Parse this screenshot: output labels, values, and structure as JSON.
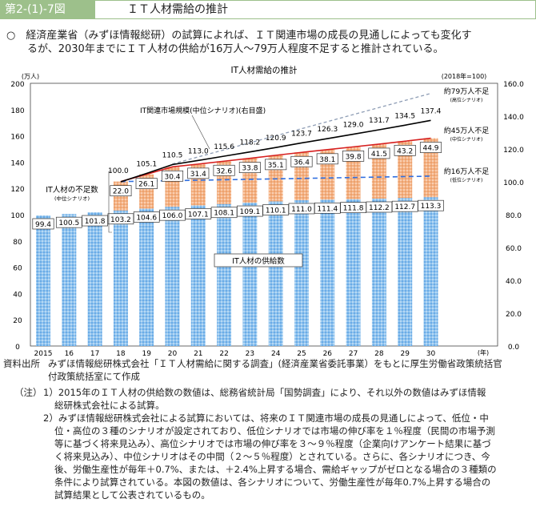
{
  "header": {
    "figure_no": "第2-(1)-7図",
    "title": "ＩＴ人材需給の推計"
  },
  "lead": {
    "line1": "○　経済産業省（みずほ情報総研）の試算によれば、ＩＴ関連市場の成長の見通しによっても変化す",
    "line2": "るが、2030年までにＩＴ人材の供給が16万人～79万人程度不足すると推計されている。"
  },
  "chart_data": {
    "type": "bar",
    "title": "IT人材需給の推計",
    "ylabel": "(万人)",
    "y2label": "(2018年=100)",
    "xlabel": "(年)",
    "ylim": [
      0,
      200
    ],
    "y2lim": [
      0,
      160
    ],
    "yticks": [
      "0",
      "20",
      "40",
      "60",
      "80",
      "100",
      "120",
      "140",
      "160",
      "180",
      "200"
    ],
    "y2ticks": [
      "0.0",
      "20.0",
      "40.0",
      "60.0",
      "80.0",
      "100.0",
      "120.0",
      "140.0",
      "160.0"
    ],
    "categories": [
      "2015",
      "16",
      "17",
      "18",
      "19",
      "20",
      "21",
      "22",
      "23",
      "24",
      "25",
      "26",
      "27",
      "28",
      "29",
      "30"
    ],
    "series": [
      {
        "name": "IT人材の供給数",
        "type": "stacked-bar",
        "color": "#8fc3ee",
        "values": [
          99.4,
          100.5,
          101.8,
          103.2,
          104.6,
          106.0,
          107.1,
          108.1,
          109.1,
          110.1,
          111.0,
          111.4,
          111.8,
          112.2,
          112.7,
          113.3
        ]
      },
      {
        "name": "IT人材の不足数",
        "sub": "(中位シナリオ)",
        "type": "stacked-bar",
        "color": "#f4b183",
        "values": [
          null,
          null,
          null,
          22.0,
          26.1,
          30.4,
          31.4,
          32.6,
          33.8,
          35.1,
          36.4,
          38.1,
          39.8,
          41.5,
          43.2,
          44.9
        ]
      },
      {
        "name": "IT関連市場規模(中位シナリオ)(右目盛)",
        "type": "line",
        "axis": "right",
        "color": "#000000",
        "values": [
          null,
          null,
          null,
          100.0,
          105.1,
          110.5,
          113.0,
          115.6,
          118.2,
          120.9,
          123.7,
          126.3,
          129.0,
          131.7,
          134.5,
          137.4
        ]
      }
    ],
    "scenarios": [
      {
        "label": "約79万人不足",
        "sub": "(高位シナリオ)",
        "color": "#8e9db5",
        "style": "dashed",
        "demand": {
          "20": 138.6,
          "30": 192.3
        }
      },
      {
        "label": "約45万人不足",
        "sub": "(中位シナリオ)",
        "color": "#d62020",
        "style": "solid"
      },
      {
        "label": "約16万人不足",
        "sub": "(低位シナリオ)",
        "color": "#2f6fe0",
        "style": "dashed",
        "demand": {
          "18": 125.2,
          "30": 129.3
        }
      }
    ]
  },
  "notes": {
    "source_key": "資料出所",
    "source1": "みずほ情報総研株式会社「ＩＴ人材需給に関する調査」(経済産業省委託事業）をもとに厚生労働省政策統括官",
    "source2": "付政策統括室にて作成",
    "note_key": "（注）",
    "n1a": "1）2015年のＩＴ人材の供給数の数値は、総務省統計局「国勢調査」により、それ以外の数値はみずほ情報",
    "n1b": "総研株式会社による試算。",
    "n2a": "2）みずほ情報総研株式会社による試算においては、将来のＩＴ関連市場の成長の見通しによって、低位・中",
    "n2b": "位・高位の３種のシナリオが設定されており、低位シナリオでは市場の伸び率を１％程度（民間の市場予測",
    "n2c": "等に基づく将来見込み）、高位シナリオでは市場の伸び率を３～９％程度（企業向けアンケート結果に基づ",
    "n2d": "く将来見込み）、中位シナリオはその中間（２～５％程度）とされている。さらに、各シナリオにつき、今",
    "n2e": "後、労働生産性が毎年＋0.7%、または、＋2.4%上昇する場合、需給ギャップがゼロとなる場合の３種類の",
    "n2f": "条件により試算されている。本図の数値は、各シナリオについて、労働生産性が毎年0.7%上昇する場合の",
    "n2g": "試算結果として公表されているもの。"
  }
}
